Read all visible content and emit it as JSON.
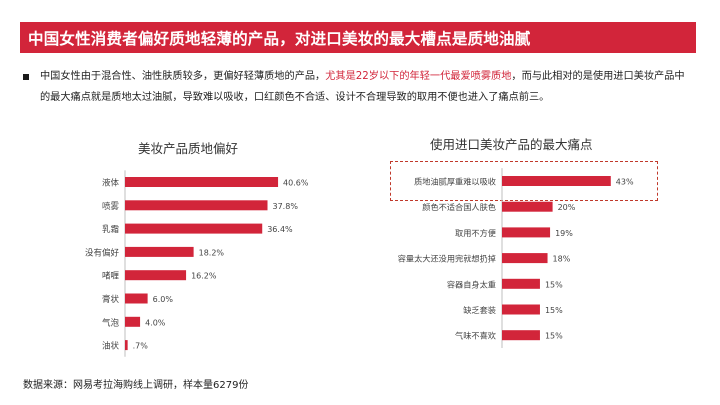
{
  "header": {
    "title": "中国女性消费者偏好质地轻薄的产品，对进口美妆的最大槽点是质地油腻"
  },
  "description": {
    "part1": "中国女性由于混合性、油性肤质较多，更偏好轻薄质地的产品，",
    "highlight": "尤其是22岁以下的年轻一代最爱喷雾质地",
    "part2": "，而与此相对的是使用进口美妆产品中的最大痛点就是质地太过油腻，导致难以吸收，口红颜色不合适、设计不合理导致的取用不便也进入了痛点前三。"
  },
  "colors": {
    "accent": "#d2253a"
  },
  "chart_data": [
    {
      "type": "bar",
      "orientation": "horizontal",
      "title": "美妆产品质地偏好",
      "categories": [
        "液体",
        "喷雾",
        "乳霜",
        "没有偏好",
        "啫喱",
        "膏状",
        "气泡",
        "油状"
      ],
      "values": [
        40.6,
        37.8,
        36.4,
        18.2,
        16.2,
        6.0,
        4.0,
        0.7
      ],
      "value_labels": [
        "40.6%",
        "37.8%",
        "36.4%",
        "18.2%",
        "16.2%",
        "6.0%",
        "4.0%",
        ".7%"
      ],
      "unit": "%"
    },
    {
      "type": "bar",
      "orientation": "horizontal",
      "title": "使用进口美妆产品的最大痛点",
      "categories": [
        "质地油腻厚重难以吸收",
        "颜色不适合国人肤色",
        "取用不方便",
        "容量太大还没用完就想扔掉",
        "容器自身太重",
        "缺乏套装",
        "气味不喜欢"
      ],
      "values": [
        43,
        20,
        19,
        18,
        15,
        15,
        15
      ],
      "value_labels": [
        "43%",
        "20%",
        "19%",
        "18%",
        "15%",
        "15%",
        "15%"
      ],
      "unit": "%",
      "highlighted_category": "质地油腻厚重难以吸收"
    }
  ],
  "footer": {
    "source": "数据来源：网易考拉海购线上调研，样本量6279份"
  }
}
